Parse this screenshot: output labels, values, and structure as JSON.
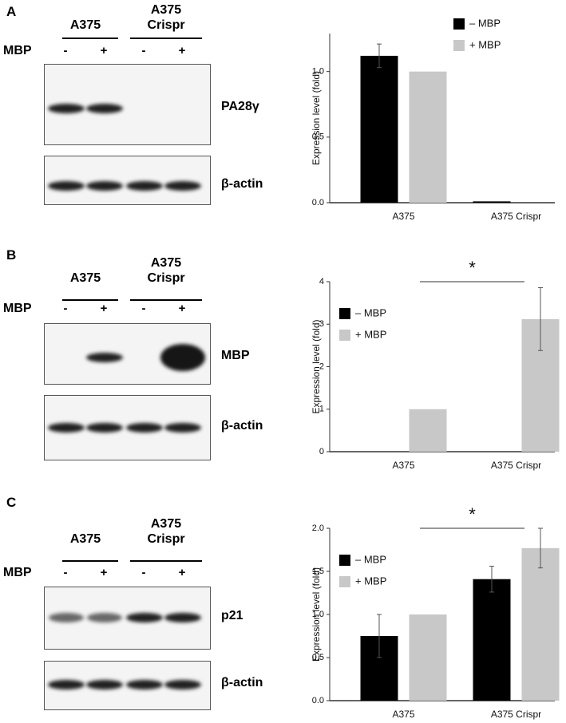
{
  "blots": [
    {
      "letter": "A",
      "groups": [
        "A375",
        "A375 Crispr"
      ],
      "row_label": "MBP",
      "lanes": [
        "-",
        "+",
        "-",
        "+"
      ],
      "bands": [
        "PA28γ",
        "β-actin"
      ]
    },
    {
      "letter": "B",
      "groups": [
        "A375",
        "A375 Crispr"
      ],
      "row_label": "MBP",
      "lanes": [
        "-",
        "+",
        "-",
        "+"
      ],
      "bands": [
        "MBP",
        "β-actin"
      ]
    },
    {
      "letter": "C",
      "groups": [
        "A375",
        "A375 Crispr"
      ],
      "row_label": "MBP",
      "lanes": [
        "-",
        "+",
        "-",
        "+"
      ],
      "bands": [
        "p21",
        "β-actin"
      ]
    }
  ],
  "chart_data": [
    {
      "type": "bar",
      "y_label": "Expression level  (fold)",
      "categories": [
        "A375",
        "A375 Crispr"
      ],
      "series": [
        {
          "name": "– MBP",
          "color": "#000000",
          "values": [
            1.12,
            0.01
          ],
          "errors": [
            0.09,
            null
          ]
        },
        {
          "name": "+ MBP",
          "color": "#c8c8c8",
          "values": [
            1.0,
            0.0
          ],
          "errors": [
            null,
            null
          ]
        }
      ],
      "ylim": [
        0,
        1.29
      ],
      "yticks": [
        {
          "value": 0,
          "label": "0.0"
        },
        0.5,
        {
          "value": 1,
          "label": "1.0"
        }
      ],
      "legend": "upper right"
    },
    {
      "type": "bar",
      "y_label": "Expression level  (fold)",
      "categories": [
        "A375",
        "A375 Crispr"
      ],
      "series": [
        {
          "name": "– MBP",
          "color": "#000000",
          "values": [
            0,
            0
          ],
          "errors": [
            null,
            null
          ]
        },
        {
          "name": "+ MBP",
          "color": "#c8c8c8",
          "values": [
            1.0,
            3.12
          ],
          "errors": [
            null,
            0.74
          ]
        }
      ],
      "ylim": [
        0,
        4
      ],
      "yticks": [
        0,
        1,
        2,
        3,
        4
      ],
      "legend": "upper left",
      "annotation": "*"
    },
    {
      "type": "bar",
      "y_label": "Expression level  (fold)",
      "categories": [
        "A375",
        "A375 Crispr"
      ],
      "series": [
        {
          "name": "– MBP",
          "color": "#000000",
          "values": [
            0.75,
            1.41
          ],
          "errors": [
            0.25,
            0.15
          ]
        },
        {
          "name": "+ MBP",
          "color": "#c8c8c8",
          "values": [
            1.0,
            1.77
          ],
          "errors": [
            null,
            0.23
          ]
        }
      ],
      "ylim": [
        0,
        2.0
      ],
      "yticks": [
        {
          "value": 0,
          "label": "0.0"
        },
        0.5,
        {
          "value": 1,
          "label": "1.0"
        },
        1.5,
        {
          "value": 2,
          "label": "2.0"
        }
      ],
      "legend": "upper left",
      "annotation": "*"
    }
  ]
}
